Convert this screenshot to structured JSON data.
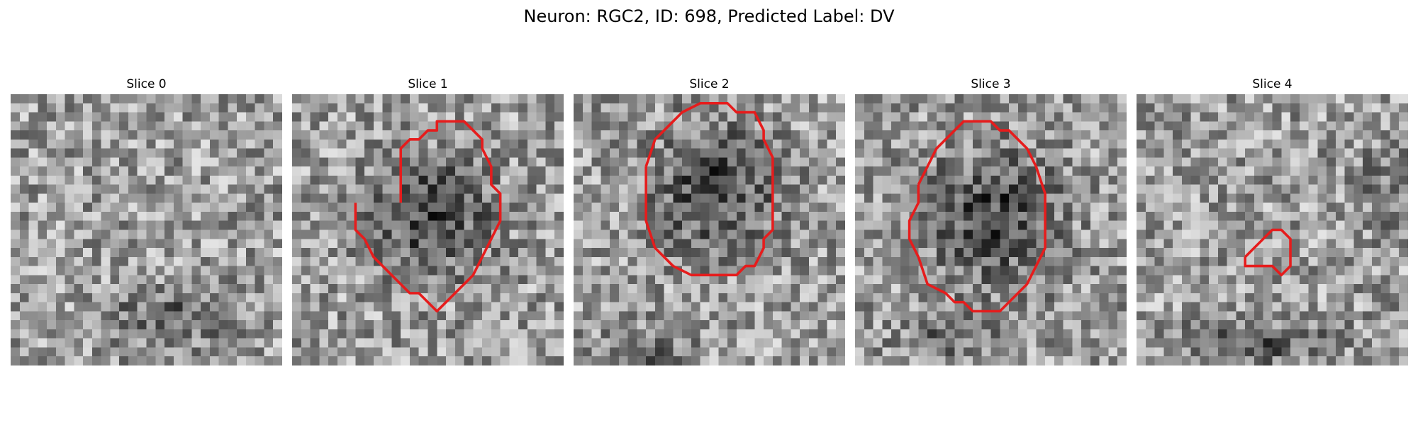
{
  "figure": {
    "title": "Neuron: RGC2, ID: 698, Predicted Label: DV"
  },
  "panels": [
    {
      "title": "Slice 0",
      "seed": 11,
      "mask": []
    },
    {
      "title": "Slice 1",
      "seed": 23,
      "mask": [
        [
          12,
          12
        ],
        [
          12,
          6
        ],
        [
          13,
          5
        ],
        [
          14,
          5
        ],
        [
          15,
          4
        ],
        [
          16,
          4
        ],
        [
          16,
          3
        ],
        [
          19,
          3
        ],
        [
          20,
          4
        ],
        [
          21,
          5
        ],
        [
          21,
          6
        ],
        [
          22,
          8
        ],
        [
          22,
          10
        ],
        [
          23,
          11
        ],
        [
          23,
          14
        ],
        [
          22,
          16
        ],
        [
          21,
          18
        ],
        [
          20,
          20
        ],
        [
          18,
          22
        ],
        [
          17,
          23
        ],
        [
          16,
          24
        ],
        [
          15,
          23
        ],
        [
          14,
          22
        ],
        [
          13,
          22
        ],
        [
          11,
          20
        ],
        [
          9,
          18
        ],
        [
          8,
          16
        ],
        [
          7,
          15
        ],
        [
          7,
          13
        ],
        [
          7,
          12
        ]
      ]
    },
    {
      "title": "Slice 2",
      "seed": 37,
      "mask": [
        [
          8,
          8
        ],
        [
          9,
          5
        ],
        [
          11,
          3
        ],
        [
          12,
          2
        ],
        [
          14,
          1
        ],
        [
          17,
          1
        ],
        [
          18,
          2
        ],
        [
          20,
          2
        ],
        [
          21,
          4
        ],
        [
          21,
          5
        ],
        [
          22,
          7
        ],
        [
          22,
          15
        ],
        [
          21,
          16
        ],
        [
          21,
          17
        ],
        [
          20,
          19
        ],
        [
          19,
          19
        ],
        [
          18,
          20
        ],
        [
          16,
          20
        ],
        [
          15,
          20
        ],
        [
          13,
          20
        ],
        [
          11,
          19
        ],
        [
          9,
          17
        ],
        [
          8,
          14
        ],
        [
          8,
          8
        ]
      ]
    },
    {
      "title": "Slice 3",
      "seed": 53,
      "mask": [
        [
          7,
          10
        ],
        [
          8,
          8
        ],
        [
          9,
          6
        ],
        [
          10,
          5
        ],
        [
          11,
          4
        ],
        [
          12,
          3
        ],
        [
          15,
          3
        ],
        [
          16,
          4
        ],
        [
          17,
          4
        ],
        [
          18,
          5
        ],
        [
          19,
          6
        ],
        [
          20,
          8
        ],
        [
          21,
          11
        ],
        [
          21,
          17
        ],
        [
          20,
          19
        ],
        [
          19,
          21
        ],
        [
          17,
          23
        ],
        [
          16,
          24
        ],
        [
          13,
          24
        ],
        [
          12,
          23
        ],
        [
          11,
          23
        ],
        [
          10,
          22
        ],
        [
          8,
          21
        ],
        [
          7,
          18
        ],
        [
          6,
          16
        ],
        [
          6,
          14
        ],
        [
          7,
          12
        ],
        [
          7,
          10
        ]
      ]
    },
    {
      "title": "Slice 4",
      "seed": 71,
      "mask": [
        [
          12,
          18
        ],
        [
          13,
          17
        ],
        [
          14,
          16
        ],
        [
          15,
          15
        ],
        [
          16,
          15
        ],
        [
          17,
          16
        ],
        [
          17,
          19
        ],
        [
          16,
          20
        ],
        [
          15,
          19
        ],
        [
          14,
          19
        ],
        [
          13,
          19
        ],
        [
          12,
          19
        ],
        [
          12,
          18
        ]
      ]
    }
  ],
  "mask_color": "#e61c1c"
}
